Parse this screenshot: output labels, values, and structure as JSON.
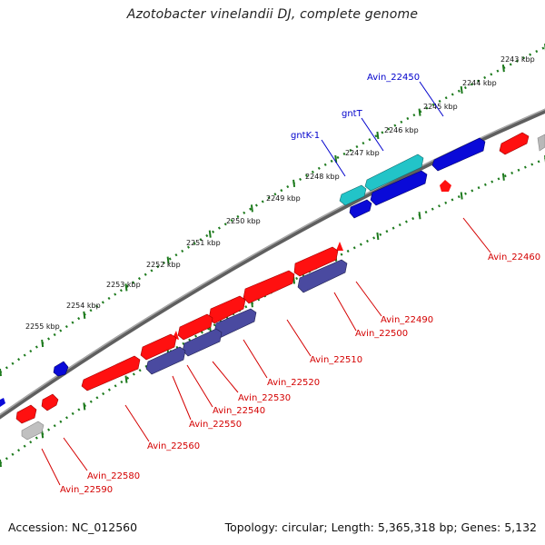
{
  "title": "Azotobacter vinelandii DJ, complete genome",
  "footer": {
    "accession": "Accession: NC_012560",
    "summary": "Topology: circular; Length: 5,365,318 bp; Genes: 5,132"
  },
  "colors": {
    "backbone": "#7a7a7a",
    "tick_dots": "#1d7a1d",
    "forward_gene": "#ff1010",
    "reverse_gene": "#0a0ad8",
    "reverse_gene_muted": "#4a4aa0",
    "rna_cyan": "#22c4c8",
    "pseudo_gray": "#b0b0b0",
    "label_red": "#d40000",
    "label_blue": "#0000cc"
  },
  "scale_ticks": [
    "2243 kbp",
    "2244 kbp",
    "2245 kbp",
    "2246 kbp",
    "2247 kbp",
    "2248 kbp",
    "2249 kbp",
    "2250 kbp",
    "2251 kbp",
    "2252 kbp",
    "2253 kbp",
    "2254 kbp",
    "2255 kbp"
  ],
  "gene_labels": {
    "Avin_22450": "Avin_22450",
    "gntT": "gntT",
    "gntK-1": "gntK-1",
    "Avin_22460": "Avin_22460",
    "Avin_22490": "Avin_22490",
    "Avin_22500": "Avin_22500",
    "Avin_22510": "Avin_22510",
    "Avin_22520": "Avin_22520",
    "Avin_22530": "Avin_22530",
    "Avin_22540": "Avin_22540",
    "Avin_22550": "Avin_22550",
    "Avin_22560": "Avin_22560",
    "Avin_22580": "Avin_22580",
    "Avin_22590": "Avin_22590"
  }
}
